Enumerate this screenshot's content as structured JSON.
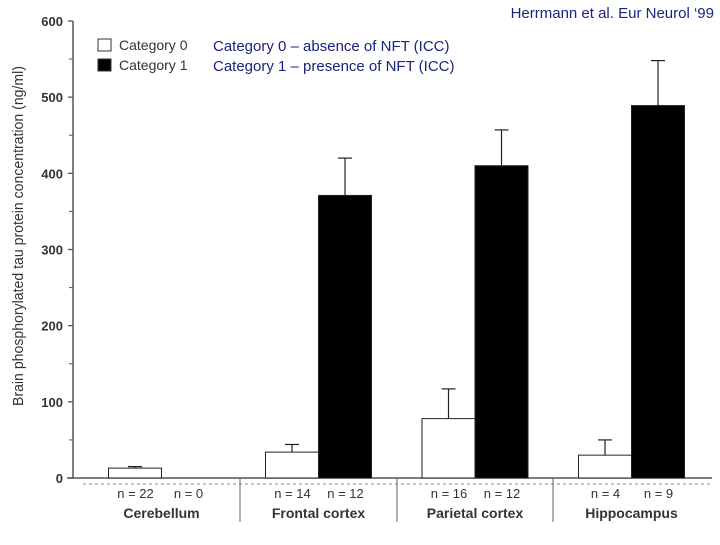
{
  "credit": "Herrmann et al. Eur Neurol ‘99",
  "notes": [
    "Category 0 – absence of NFT (ICC)",
    "Category 1 – presence of NFT (ICC)"
  ],
  "colors": {
    "category0": "#ffffff",
    "category1": "#000000",
    "note_text": "#1a237e"
  },
  "chart_data": {
    "type": "bar",
    "title": "",
    "ylabel": "Brain phosphorylated tau protein concentration (ng/ml)",
    "xlabel": "",
    "ylim": [
      0,
      600
    ],
    "yticks": [
      0,
      100,
      200,
      300,
      400,
      500,
      600
    ],
    "legend_position": "top-left",
    "categories": [
      "Cerebellum",
      "Frontal cortex",
      "Parietal cortex",
      "Hippocampus"
    ],
    "sample_labels": [
      [
        "n = 22",
        "n = 0"
      ],
      [
        "n = 14",
        "n = 12"
      ],
      [
        "n = 16",
        "n = 12"
      ],
      [
        "n = 4",
        "n = 9"
      ]
    ],
    "series": [
      {
        "name": "Category 0",
        "color": "#ffffff",
        "values": [
          13,
          34,
          78,
          30
        ],
        "error": [
          2,
          10,
          39,
          20
        ]
      },
      {
        "name": "Category 1",
        "color": "#000000",
        "values": [
          null,
          371,
          410,
          489
        ],
        "error": [
          null,
          49,
          47,
          59
        ]
      }
    ]
  }
}
